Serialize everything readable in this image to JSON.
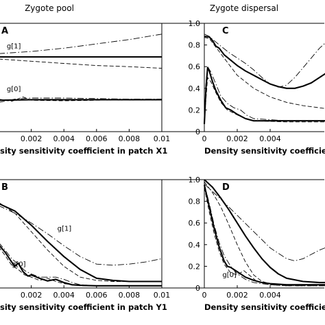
{
  "figure": {
    "left_title": "Zygote pool",
    "right_title": "Zygote dispersal"
  },
  "chart_data": [
    {
      "panel": "A",
      "type": "line",
      "xlabel": "sity sensitivity coefficient in patch X1",
      "xlim": [
        0,
        0.01
      ],
      "ylim": [
        0,
        1
      ],
      "xticks": [
        0.002,
        0.004,
        0.006,
        0.008,
        0.01
      ],
      "xtick_labels": [
        "0.002",
        "0.004",
        "0.006",
        "0.008",
        "0.01"
      ],
      "yticks": [],
      "ytick_labels": [],
      "annotations": [
        {
          "text": "g[1]",
          "x": 0.0005,
          "y": 0.77
        },
        {
          "text": "g[0]",
          "x": 0.0005,
          "y": 0.375
        }
      ],
      "series": [
        {
          "style": "thick",
          "x": [
            0,
            0.01
          ],
          "y": [
            0.69,
            0.69
          ]
        },
        {
          "style": "dashdot",
          "x": [
            0,
            0.002,
            0.004,
            0.006,
            0.008,
            0.01
          ],
          "y": [
            0.72,
            0.74,
            0.77,
            0.81,
            0.85,
            0.9
          ]
        },
        {
          "style": "dashed",
          "x": [
            0,
            0.002,
            0.004,
            0.006,
            0.008,
            0.01
          ],
          "y": [
            0.67,
            0.65,
            0.63,
            0.61,
            0.6,
            0.585
          ]
        },
        {
          "style": "thick",
          "x": [
            0,
            0.002,
            0.004,
            0.006,
            0.008,
            0.01
          ],
          "y": [
            0.29,
            0.295,
            0.295,
            0.295,
            0.295,
            0.295
          ]
        },
        {
          "style": "dashdot",
          "x": [
            0,
            0.001,
            0.002,
            0.004,
            0.006,
            0.008,
            0.01
          ],
          "y": [
            0.27,
            0.3,
            0.31,
            0.31,
            0.305,
            0.3,
            0.3
          ]
        },
        {
          "style": "dashed",
          "x": [
            0,
            0.0008,
            0.0015,
            0.002,
            0.004,
            0.006,
            0.008,
            0.01
          ],
          "y": [
            0.3,
            0.28,
            0.32,
            0.29,
            0.285,
            0.29,
            0.295,
            0.295
          ]
        }
      ]
    },
    {
      "panel": "C",
      "type": "line",
      "xlabel": "Density sensitivity coefficient",
      "xlim": [
        0,
        0.0075
      ],
      "ylim": [
        0,
        1
      ],
      "xticks": [
        0,
        0.002,
        0.004
      ],
      "xtick_labels": [
        "0",
        "0.002",
        "0.004"
      ],
      "yticks": [
        0,
        0.2,
        0.4,
        0.6,
        0.8,
        1
      ],
      "ytick_labels": [
        "0",
        "0.2",
        "0.4",
        "0.6",
        "0.8",
        "1.0"
      ],
      "annotations": [],
      "series": [
        {
          "style": "thick",
          "x": [
            0,
            0.0003,
            0.0005,
            0.0007,
            0.0009,
            0.0012,
            0.0016,
            0.002,
            0.0025,
            0.003,
            0.0035,
            0.004,
            0.0045,
            0.005,
            0.0055,
            0.006,
            0.0065,
            0.007,
            0.0075
          ],
          "y": [
            0.88,
            0.875,
            0.84,
            0.79,
            0.77,
            0.71,
            0.66,
            0.61,
            0.56,
            0.52,
            0.48,
            0.44,
            0.415,
            0.4,
            0.4,
            0.42,
            0.45,
            0.5,
            0.55
          ]
        },
        {
          "style": "dashdot",
          "x": [
            0,
            0.0003,
            0.0006,
            0.001,
            0.0015,
            0.002,
            0.0025,
            0.003,
            0.0035,
            0.004,
            0.0045,
            0.005,
            0.0055,
            0.006,
            0.0065,
            0.007,
            0.0075
          ],
          "y": [
            0.9,
            0.88,
            0.84,
            0.79,
            0.73,
            0.68,
            0.63,
            0.57,
            0.5,
            0.44,
            0.41,
            0.43,
            0.5,
            0.59,
            0.68,
            0.77,
            0.84
          ]
        },
        {
          "style": "dashed",
          "x": [
            0,
            0.0003,
            0.0005,
            0.0008,
            0.0012,
            0.0016,
            0.002,
            0.003,
            0.004,
            0.005,
            0.006,
            0.007,
            0.0075
          ],
          "y": [
            0.87,
            0.86,
            0.82,
            0.76,
            0.68,
            0.6,
            0.52,
            0.4,
            0.32,
            0.27,
            0.24,
            0.22,
            0.21
          ]
        },
        {
          "style": "thick",
          "x": [
            0,
            0.0001,
            0.0002,
            0.0003,
            0.0005,
            0.0007,
            0.001,
            0.0013,
            0.0016,
            0.002,
            0.0025,
            0.003,
            0.004,
            0.005,
            0.006,
            0.0075
          ],
          "y": [
            0.07,
            0.4,
            0.59,
            0.56,
            0.46,
            0.38,
            0.29,
            0.22,
            0.2,
            0.16,
            0.12,
            0.1,
            0.1,
            0.1,
            0.1,
            0.1
          ]
        },
        {
          "style": "dashdot",
          "x": [
            0,
            0.0001,
            0.0002,
            0.0004,
            0.0007,
            0.001,
            0.0014,
            0.0018,
            0.0022,
            0.0026,
            0.003,
            0.004,
            0.005,
            0.006,
            0.0075
          ],
          "y": [
            0.08,
            0.45,
            0.6,
            0.55,
            0.44,
            0.33,
            0.26,
            0.22,
            0.2,
            0.15,
            0.12,
            0.11,
            0.1,
            0.1,
            0.1
          ]
        },
        {
          "style": "dashed",
          "x": [
            0,
            0.0001,
            0.0002,
            0.0004,
            0.0007,
            0.001,
            0.0014,
            0.0018,
            0.0022,
            0.0026,
            0.003,
            0.004,
            0.005,
            0.006,
            0.0075
          ],
          "y": [
            0.08,
            0.3,
            0.5,
            0.46,
            0.36,
            0.27,
            0.2,
            0.17,
            0.14,
            0.12,
            0.1,
            0.095,
            0.09,
            0.09,
            0.09
          ]
        }
      ]
    },
    {
      "panel": "B",
      "type": "line",
      "xlabel": "sity sensitivity coefficient in patch Y1",
      "xlim": [
        0,
        0.01
      ],
      "ylim": [
        0,
        1
      ],
      "xticks": [
        0.002,
        0.004,
        0.006,
        0.008,
        0.01
      ],
      "xtick_labels": [
        "0.002",
        "0.004",
        "0.006",
        "0.008",
        "0.01"
      ],
      "yticks": [],
      "ytick_labels": [],
      "annotations": [
        {
          "text": "g[1]",
          "x": 0.0036,
          "y": 0.53
        },
        {
          "text": "g[0]",
          "x": 0.0008,
          "y": 0.2
        }
      ],
      "series": [
        {
          "style": "thick",
          "x": [
            0,
            0.001,
            0.002,
            0.003,
            0.004,
            0.005,
            0.006,
            0.007,
            0.008,
            0.009,
            0.01
          ],
          "y": [
            0.78,
            0.71,
            0.58,
            0.43,
            0.29,
            0.17,
            0.09,
            0.07,
            0.06,
            0.06,
            0.06
          ]
        },
        {
          "style": "dashdot",
          "x": [
            0,
            0.001,
            0.002,
            0.003,
            0.004,
            0.005,
            0.006,
            0.007,
            0.008,
            0.009,
            0.01
          ],
          "y": [
            0.76,
            0.69,
            0.6,
            0.5,
            0.39,
            0.29,
            0.22,
            0.21,
            0.22,
            0.24,
            0.27
          ]
        },
        {
          "style": "dashed",
          "x": [
            0,
            0.001,
            0.002,
            0.003,
            0.004,
            0.005,
            0.006,
            0.007,
            0.008,
            0.009,
            0.01
          ],
          "y": [
            0.79,
            0.69,
            0.52,
            0.35,
            0.2,
            0.1,
            0.07,
            0.06,
            0.06,
            0.06,
            0.06
          ]
        },
        {
          "style": "thick",
          "x": [
            0,
            0.0004,
            0.0008,
            0.001,
            0.0012,
            0.0015,
            0.0018,
            0.002,
            0.0025,
            0.003,
            0.0035,
            0.004,
            0.0045,
            0.005,
            0.006,
            0.008,
            0.01
          ],
          "y": [
            0.4,
            0.33,
            0.24,
            0.2,
            0.23,
            0.15,
            0.11,
            0.12,
            0.09,
            0.065,
            0.08,
            0.05,
            0.03,
            0.025,
            0.02,
            0.02,
            0.02
          ]
        },
        {
          "style": "dashdot",
          "x": [
            0,
            0.0004,
            0.0008,
            0.0012,
            0.0016,
            0.002,
            0.0025,
            0.003,
            0.0035,
            0.004,
            0.0045,
            0.005,
            0.006,
            0.008,
            0.01
          ],
          "y": [
            0.42,
            0.35,
            0.27,
            0.22,
            0.16,
            0.13,
            0.1,
            0.1,
            0.1,
            0.08,
            0.05,
            0.03,
            0.02,
            0.02,
            0.02
          ]
        },
        {
          "style": "dashed",
          "x": [
            0,
            0.0004,
            0.0008,
            0.0012,
            0.0016,
            0.002,
            0.0025,
            0.003,
            0.0035,
            0.004,
            0.005,
            0.006,
            0.008,
            0.01
          ],
          "y": [
            0.38,
            0.3,
            0.21,
            0.17,
            0.12,
            0.1,
            0.07,
            0.09,
            0.06,
            0.04,
            0.02,
            0.02,
            0.02,
            0.02
          ]
        }
      ]
    },
    {
      "panel": "D",
      "type": "line",
      "xlabel": "Density sensitivity coefficient",
      "xlim": [
        0,
        0.0075
      ],
      "ylim": [
        0,
        1
      ],
      "xticks": [
        0,
        0.002,
        0.004
      ],
      "xtick_labels": [
        "0",
        "0.002",
        "0.004"
      ],
      "yticks": [
        0,
        0.2,
        0.4,
        0.6,
        0.8,
        1
      ],
      "ytick_labels": [
        "0",
        "0.2",
        "0.4",
        "0.6",
        "0.8",
        "1.0"
      ],
      "annotations": [
        {
          "text": "g[0]",
          "x": 0.0011,
          "y": 0.1
        }
      ],
      "series": [
        {
          "style": "thick",
          "x": [
            0,
            0.0005,
            0.001,
            0.0015,
            0.002,
            0.0025,
            0.003,
            0.0035,
            0.004,
            0.0045,
            0.005,
            0.006,
            0.007,
            0.0075
          ],
          "y": [
            1.0,
            0.93,
            0.83,
            0.72,
            0.6,
            0.48,
            0.37,
            0.27,
            0.19,
            0.13,
            0.09,
            0.06,
            0.05,
            0.05
          ]
        },
        {
          "style": "dashdot",
          "x": [
            0,
            0.001,
            0.002,
            0.003,
            0.004,
            0.005,
            0.0055,
            0.006,
            0.0065,
            0.007,
            0.0075
          ],
          "y": [
            0.96,
            0.82,
            0.67,
            0.52,
            0.37,
            0.27,
            0.25,
            0.27,
            0.31,
            0.35,
            0.38
          ]
        },
        {
          "style": "dashed",
          "x": [
            0,
            0.0005,
            0.001,
            0.0015,
            0.002,
            0.0025,
            0.003,
            0.0035,
            0.004,
            0.005,
            0.0075
          ],
          "y": [
            0.98,
            0.88,
            0.75,
            0.58,
            0.4,
            0.24,
            0.12,
            0.06,
            0.04,
            0.03,
            0.03
          ]
        },
        {
          "style": "thick",
          "x": [
            0,
            0.0003,
            0.0006,
            0.0009,
            0.0012,
            0.0014,
            0.0016,
            0.002,
            0.0025,
            0.003,
            0.0035,
            0.004,
            0.005,
            0.0075
          ],
          "y": [
            0.95,
            0.75,
            0.55,
            0.38,
            0.25,
            0.2,
            0.19,
            0.15,
            0.1,
            0.07,
            0.05,
            0.04,
            0.03,
            0.03
          ]
        },
        {
          "style": "dashdot",
          "x": [
            0,
            0.0003,
            0.0006,
            0.0009,
            0.0012,
            0.0016,
            0.002,
            0.0025,
            0.003,
            0.004,
            0.005,
            0.0075
          ],
          "y": [
            0.96,
            0.78,
            0.58,
            0.42,
            0.3,
            0.2,
            0.13,
            0.08,
            0.05,
            0.03,
            0.02,
            0.02
          ]
        },
        {
          "style": "dashed",
          "x": [
            0,
            0.0003,
            0.0006,
            0.0009,
            0.0012,
            0.0016,
            0.002,
            0.0024,
            0.0028,
            0.0032,
            0.004,
            0.005,
            0.0075
          ],
          "y": [
            0.93,
            0.7,
            0.5,
            0.34,
            0.22,
            0.14,
            0.12,
            0.16,
            0.11,
            0.06,
            0.03,
            0.02,
            0.02
          ]
        }
      ]
    }
  ]
}
